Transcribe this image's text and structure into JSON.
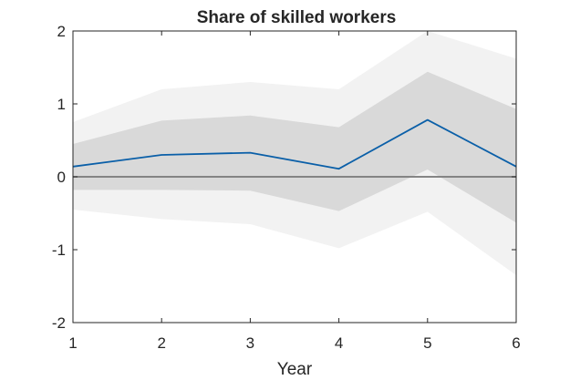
{
  "chart_data": {
    "type": "line",
    "title": "Share of skilled workers",
    "xlabel": "Year",
    "ylabel": "",
    "x": [
      1,
      2,
      3,
      4,
      5,
      6
    ],
    "xlim": [
      1,
      6
    ],
    "ylim": [
      -2,
      2
    ],
    "xticks": [
      "1",
      "2",
      "3",
      "4",
      "5",
      "6"
    ],
    "yticks": [
      "-2",
      "-1",
      "0",
      "1",
      "2"
    ],
    "grid": false,
    "legend": "none",
    "zero_line": 0,
    "series": [
      {
        "role": "estimate",
        "values": [
          0.14,
          0.3,
          0.33,
          0.11,
          0.78,
          0.14
        ],
        "color": "#0a5fa8"
      }
    ],
    "bands": [
      {
        "role": "outer-band",
        "lower": [
          -0.45,
          -0.58,
          -0.65,
          -0.98,
          -0.48,
          -1.35
        ],
        "upper": [
          0.75,
          1.2,
          1.3,
          1.2,
          2.0,
          1.62
        ],
        "color": "#f2f2f2"
      },
      {
        "role": "inner-band",
        "lower": [
          -0.18,
          -0.18,
          -0.19,
          -0.47,
          0.1,
          -0.63
        ],
        "upper": [
          0.45,
          0.77,
          0.84,
          0.68,
          1.44,
          0.93
        ],
        "color": "#d9d9d9"
      }
    ],
    "zero_line_color": "#777777",
    "axis_color": "#262626"
  }
}
